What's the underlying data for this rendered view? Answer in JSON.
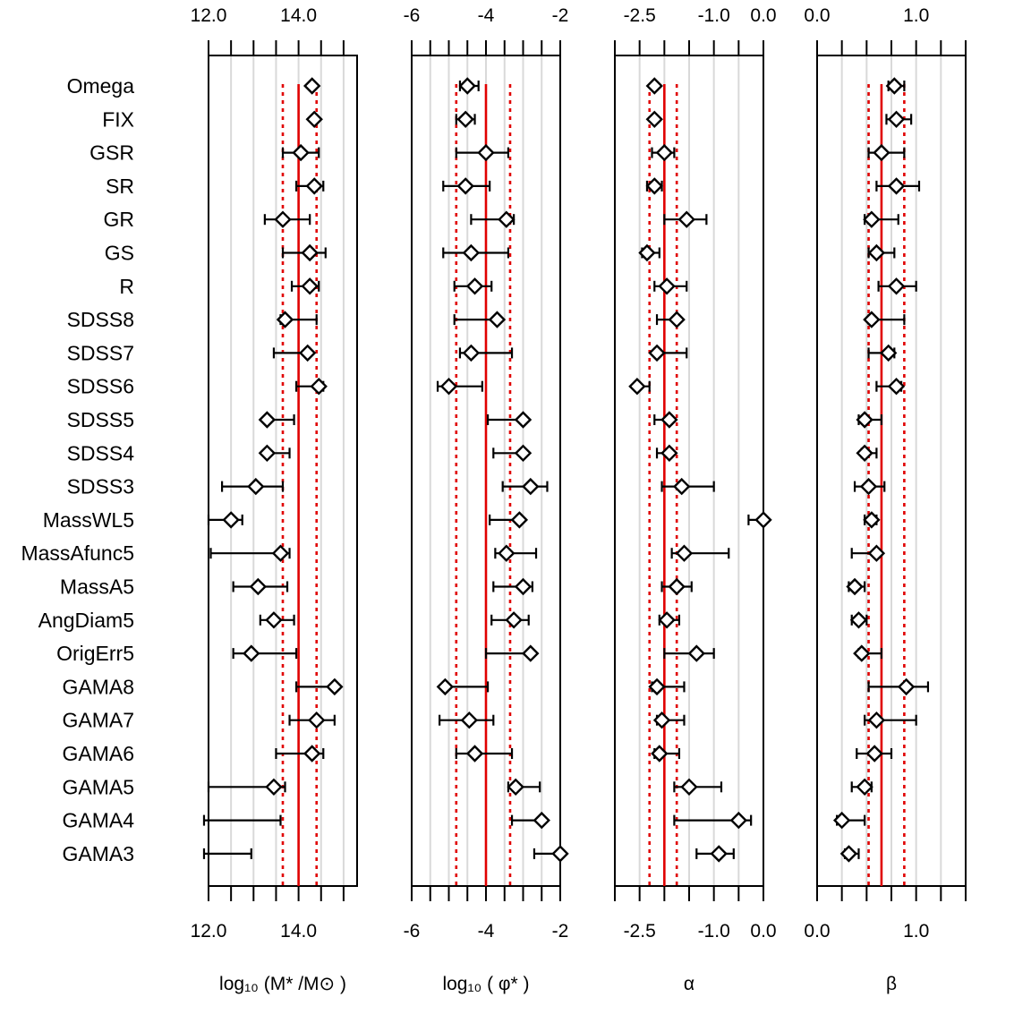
{
  "chart_data": {
    "type": "forest",
    "rows": [
      "Omega",
      "FIX",
      "GSR",
      "SR",
      "GR",
      "GS",
      "R",
      "SDSS8",
      "SDSS7",
      "SDSS6",
      "SDSS5",
      "SDSS4",
      "SDSS3",
      "MassWL5",
      "MassAfunc5",
      "MassA5",
      "AngDiam5",
      "OrigErr5",
      "GAMA8",
      "GAMA7",
      "GAMA6",
      "GAMA5",
      "GAMA4",
      "GAMA3"
    ],
    "panels": [
      {
        "id": "mstar",
        "xlabel": "log₁₀ (M* /M⊙ )",
        "xlim": [
          12.0,
          15.3
        ],
        "ticks": [
          12.0,
          12.5,
          13.0,
          13.5,
          14.0,
          14.5,
          15.0
        ],
        "tick_labels": [
          {
            "v": 12.0,
            "t": "12.0"
          },
          {
            "v": 14.0,
            "t": "14.0"
          }
        ],
        "ref": 14.0,
        "ref_band": [
          13.65,
          14.4
        ],
        "estimates": [
          {
            "v": 14.3,
            "lo": 14.25,
            "hi": 14.35
          },
          {
            "v": 14.35,
            "lo": 14.3,
            "hi": 14.4
          },
          {
            "v": 14.05,
            "lo": 13.65,
            "hi": 14.45
          },
          {
            "v": 14.35,
            "lo": 13.95,
            "hi": 14.55
          },
          {
            "v": 13.65,
            "lo": 13.25,
            "hi": 14.25
          },
          {
            "v": 14.25,
            "lo": 13.65,
            "hi": 14.6
          },
          {
            "v": 14.25,
            "lo": 13.85,
            "hi": 14.45
          },
          {
            "v": 13.7,
            "lo": 13.6,
            "hi": 14.4
          },
          {
            "v": 14.2,
            "lo": 13.45,
            "hi": 14.2
          },
          {
            "v": 14.45,
            "lo": 13.95,
            "hi": 14.55
          },
          {
            "v": 13.3,
            "lo": 13.3,
            "hi": 13.9
          },
          {
            "v": 13.3,
            "lo": 13.3,
            "hi": 13.8
          },
          {
            "v": 13.05,
            "lo": 12.3,
            "hi": 13.65
          },
          {
            "v": 12.5,
            "lo": 12.0,
            "hi": 12.75
          },
          {
            "v": 13.6,
            "lo": 12.05,
            "hi": 13.8
          },
          {
            "v": 13.1,
            "lo": 12.55,
            "hi": 13.75
          },
          {
            "v": 13.45,
            "lo": 13.15,
            "hi": 13.9
          },
          {
            "v": 12.95,
            "lo": 12.55,
            "hi": 13.95
          },
          {
            "v": 14.8,
            "lo": 13.95,
            "hi": 14.85
          },
          {
            "v": 14.4,
            "lo": 13.8,
            "hi": 14.8
          },
          {
            "v": 14.3,
            "lo": 13.5,
            "hi": 14.55
          },
          {
            "v": 13.45,
            "lo": 12.0,
            "hi": 13.7
          },
          {
            "v": null,
            "lo": 11.9,
            "hi": 13.6
          },
          {
            "v": null,
            "lo": 11.9,
            "hi": 12.95
          }
        ]
      },
      {
        "id": "phistar",
        "xlabel": "log₁₀ ( φ* )",
        "xlim": [
          -6.0,
          -2.0
        ],
        "ticks": [
          -6.0,
          -5.5,
          -5.0,
          -4.5,
          -4.0,
          -3.5,
          -3.0,
          -2.5,
          -2.0
        ],
        "tick_labels": [
          {
            "v": -6,
            "t": "-6"
          },
          {
            "v": -4,
            "t": "-4"
          },
          {
            "v": -2,
            "t": "-2"
          }
        ],
        "ref": -4.0,
        "ref_band": [
          -4.8,
          -3.35
        ],
        "estimates": [
          {
            "v": -4.5,
            "lo": -4.7,
            "hi": -4.2
          },
          {
            "v": -4.55,
            "lo": -4.8,
            "hi": -4.3
          },
          {
            "v": -4.0,
            "lo": -4.8,
            "hi": -3.4
          },
          {
            "v": -4.55,
            "lo": -5.15,
            "hi": -3.9
          },
          {
            "v": -3.45,
            "lo": -4.4,
            "hi": -3.25
          },
          {
            "v": -4.4,
            "lo": -5.15,
            "hi": -3.4
          },
          {
            "v": -4.3,
            "lo": -4.85,
            "hi": -3.85
          },
          {
            "v": -3.7,
            "lo": -4.85,
            "hi": -3.7
          },
          {
            "v": -4.4,
            "lo": -4.7,
            "hi": -3.3
          },
          {
            "v": -5.0,
            "lo": -5.3,
            "hi": -4.1
          },
          {
            "v": -3.0,
            "lo": -3.95,
            "hi": -3.0
          },
          {
            "v": -3.0,
            "lo": -3.8,
            "hi": -3.0
          },
          {
            "v": -2.8,
            "lo": -3.55,
            "hi": -2.35
          },
          {
            "v": -3.1,
            "lo": -3.9,
            "hi": -3.1
          },
          {
            "v": -3.45,
            "lo": -3.75,
            "hi": -2.65
          },
          {
            "v": -3.0,
            "lo": -3.8,
            "hi": -2.75
          },
          {
            "v": -3.25,
            "lo": -3.85,
            "hi": -2.85
          },
          {
            "v": -2.8,
            "lo": -4.0,
            "hi": -2.8
          },
          {
            "v": -5.1,
            "lo": -5.1,
            "hi": -3.95
          },
          {
            "v": -4.45,
            "lo": -5.25,
            "hi": -3.8
          },
          {
            "v": -4.3,
            "lo": -4.8,
            "hi": -3.3
          },
          {
            "v": -3.2,
            "lo": -3.4,
            "hi": -2.55
          },
          {
            "v": -2.5,
            "lo": -3.3,
            "hi": -2.45
          },
          {
            "v": -2.0,
            "lo": -2.7,
            "hi": -2.0
          }
        ]
      },
      {
        "id": "alpha",
        "xlabel": "α",
        "xlim": [
          -3.0,
          0.0
        ],
        "ticks": [
          -3.0,
          -2.5,
          -2.0,
          -1.5,
          -1.0,
          -0.5,
          0.0
        ],
        "tick_labels": [
          {
            "v": -2.5,
            "t": "-2.5"
          },
          {
            "v": -1.0,
            "t": "-1.0"
          },
          {
            "v": 0.0,
            "t": "0.0"
          }
        ],
        "ref": -2.0,
        "ref_band": [
          -2.3,
          -1.75
        ],
        "estimates": [
          {
            "v": -2.2,
            "lo": -2.25,
            "hi": -2.15
          },
          {
            "v": -2.2,
            "lo": -2.2,
            "hi": -2.2
          },
          {
            "v": -2.0,
            "lo": -2.25,
            "hi": -1.8
          },
          {
            "v": -2.2,
            "lo": -2.35,
            "hi": -2.05
          },
          {
            "v": -1.55,
            "lo": -2.0,
            "hi": -1.15
          },
          {
            "v": -2.35,
            "lo": -2.45,
            "hi": -2.1
          },
          {
            "v": -1.95,
            "lo": -2.2,
            "hi": -1.55
          },
          {
            "v": -1.75,
            "lo": -2.15,
            "hi": -1.7
          },
          {
            "v": -2.15,
            "lo": -2.2,
            "hi": -1.55
          },
          {
            "v": -2.55,
            "lo": -2.6,
            "hi": -2.3
          },
          {
            "v": -1.9,
            "lo": -2.2,
            "hi": -1.85
          },
          {
            "v": -1.9,
            "lo": -2.15,
            "hi": -1.85
          },
          {
            "v": -1.65,
            "lo": -2.05,
            "hi": -1.0
          },
          {
            "v": 0.0,
            "lo": -0.3,
            "hi": 0.05
          },
          {
            "v": -1.6,
            "lo": -1.85,
            "hi": -0.7
          },
          {
            "v": -1.75,
            "lo": -2.05,
            "hi": -1.45
          },
          {
            "v": -1.95,
            "lo": -2.1,
            "hi": -1.7
          },
          {
            "v": -1.35,
            "lo": -2.0,
            "hi": -1.0
          },
          {
            "v": -2.15,
            "lo": -2.25,
            "hi": -1.6
          },
          {
            "v": -2.05,
            "lo": -2.15,
            "hi": -1.6
          },
          {
            "v": -2.1,
            "lo": -2.2,
            "hi": -1.7
          },
          {
            "v": -1.5,
            "lo": -1.8,
            "hi": -0.85
          },
          {
            "v": -0.5,
            "lo": -1.8,
            "hi": -0.25
          },
          {
            "v": -0.9,
            "lo": -1.35,
            "hi": -0.6
          }
        ]
      },
      {
        "id": "beta",
        "xlabel": "β",
        "xlim": [
          0.0,
          1.5
        ],
        "ticks": [
          0.0,
          0.25,
          0.5,
          0.75,
          1.0,
          1.25,
          1.5
        ],
        "tick_labels": [
          {
            "v": 0.0,
            "t": "0.0"
          },
          {
            "v": 1.0,
            "t": "1.0"
          }
        ],
        "ref": 0.65,
        "ref_band": [
          0.52,
          0.88
        ],
        "estimates": [
          {
            "v": 0.78,
            "lo": 0.72,
            "hi": 0.88
          },
          {
            "v": 0.8,
            "lo": 0.7,
            "hi": 0.95
          },
          {
            "v": 0.65,
            "lo": 0.52,
            "hi": 0.88
          },
          {
            "v": 0.8,
            "lo": 0.6,
            "hi": 1.03
          },
          {
            "v": 0.55,
            "lo": 0.48,
            "hi": 0.82
          },
          {
            "v": 0.6,
            "lo": 0.52,
            "hi": 0.78
          },
          {
            "v": 0.8,
            "lo": 0.62,
            "hi": 1.0
          },
          {
            "v": 0.55,
            "lo": 0.52,
            "hi": 0.88
          },
          {
            "v": 0.72,
            "lo": 0.52,
            "hi": 0.78
          },
          {
            "v": 0.8,
            "lo": 0.6,
            "hi": 0.85
          },
          {
            "v": 0.48,
            "lo": 0.42,
            "hi": 0.65
          },
          {
            "v": 0.48,
            "lo": 0.45,
            "hi": 0.6
          },
          {
            "v": 0.52,
            "lo": 0.38,
            "hi": 0.68
          },
          {
            "v": 0.55,
            "lo": 0.48,
            "hi": 0.6
          },
          {
            "v": 0.6,
            "lo": 0.35,
            "hi": 0.62
          },
          {
            "v": 0.38,
            "lo": 0.32,
            "hi": 0.48
          },
          {
            "v": 0.42,
            "lo": 0.35,
            "hi": 0.5
          },
          {
            "v": 0.45,
            "lo": 0.42,
            "hi": 0.65
          },
          {
            "v": 0.9,
            "lo": 0.52,
            "hi": 1.12
          },
          {
            "v": 0.6,
            "lo": 0.48,
            "hi": 1.0
          },
          {
            "v": 0.58,
            "lo": 0.4,
            "hi": 0.75
          },
          {
            "v": 0.48,
            "lo": 0.35,
            "hi": 0.55
          },
          {
            "v": 0.25,
            "lo": 0.2,
            "hi": 0.48
          },
          {
            "v": 0.32,
            "lo": 0.28,
            "hi": 0.42
          }
        ]
      }
    ]
  }
}
